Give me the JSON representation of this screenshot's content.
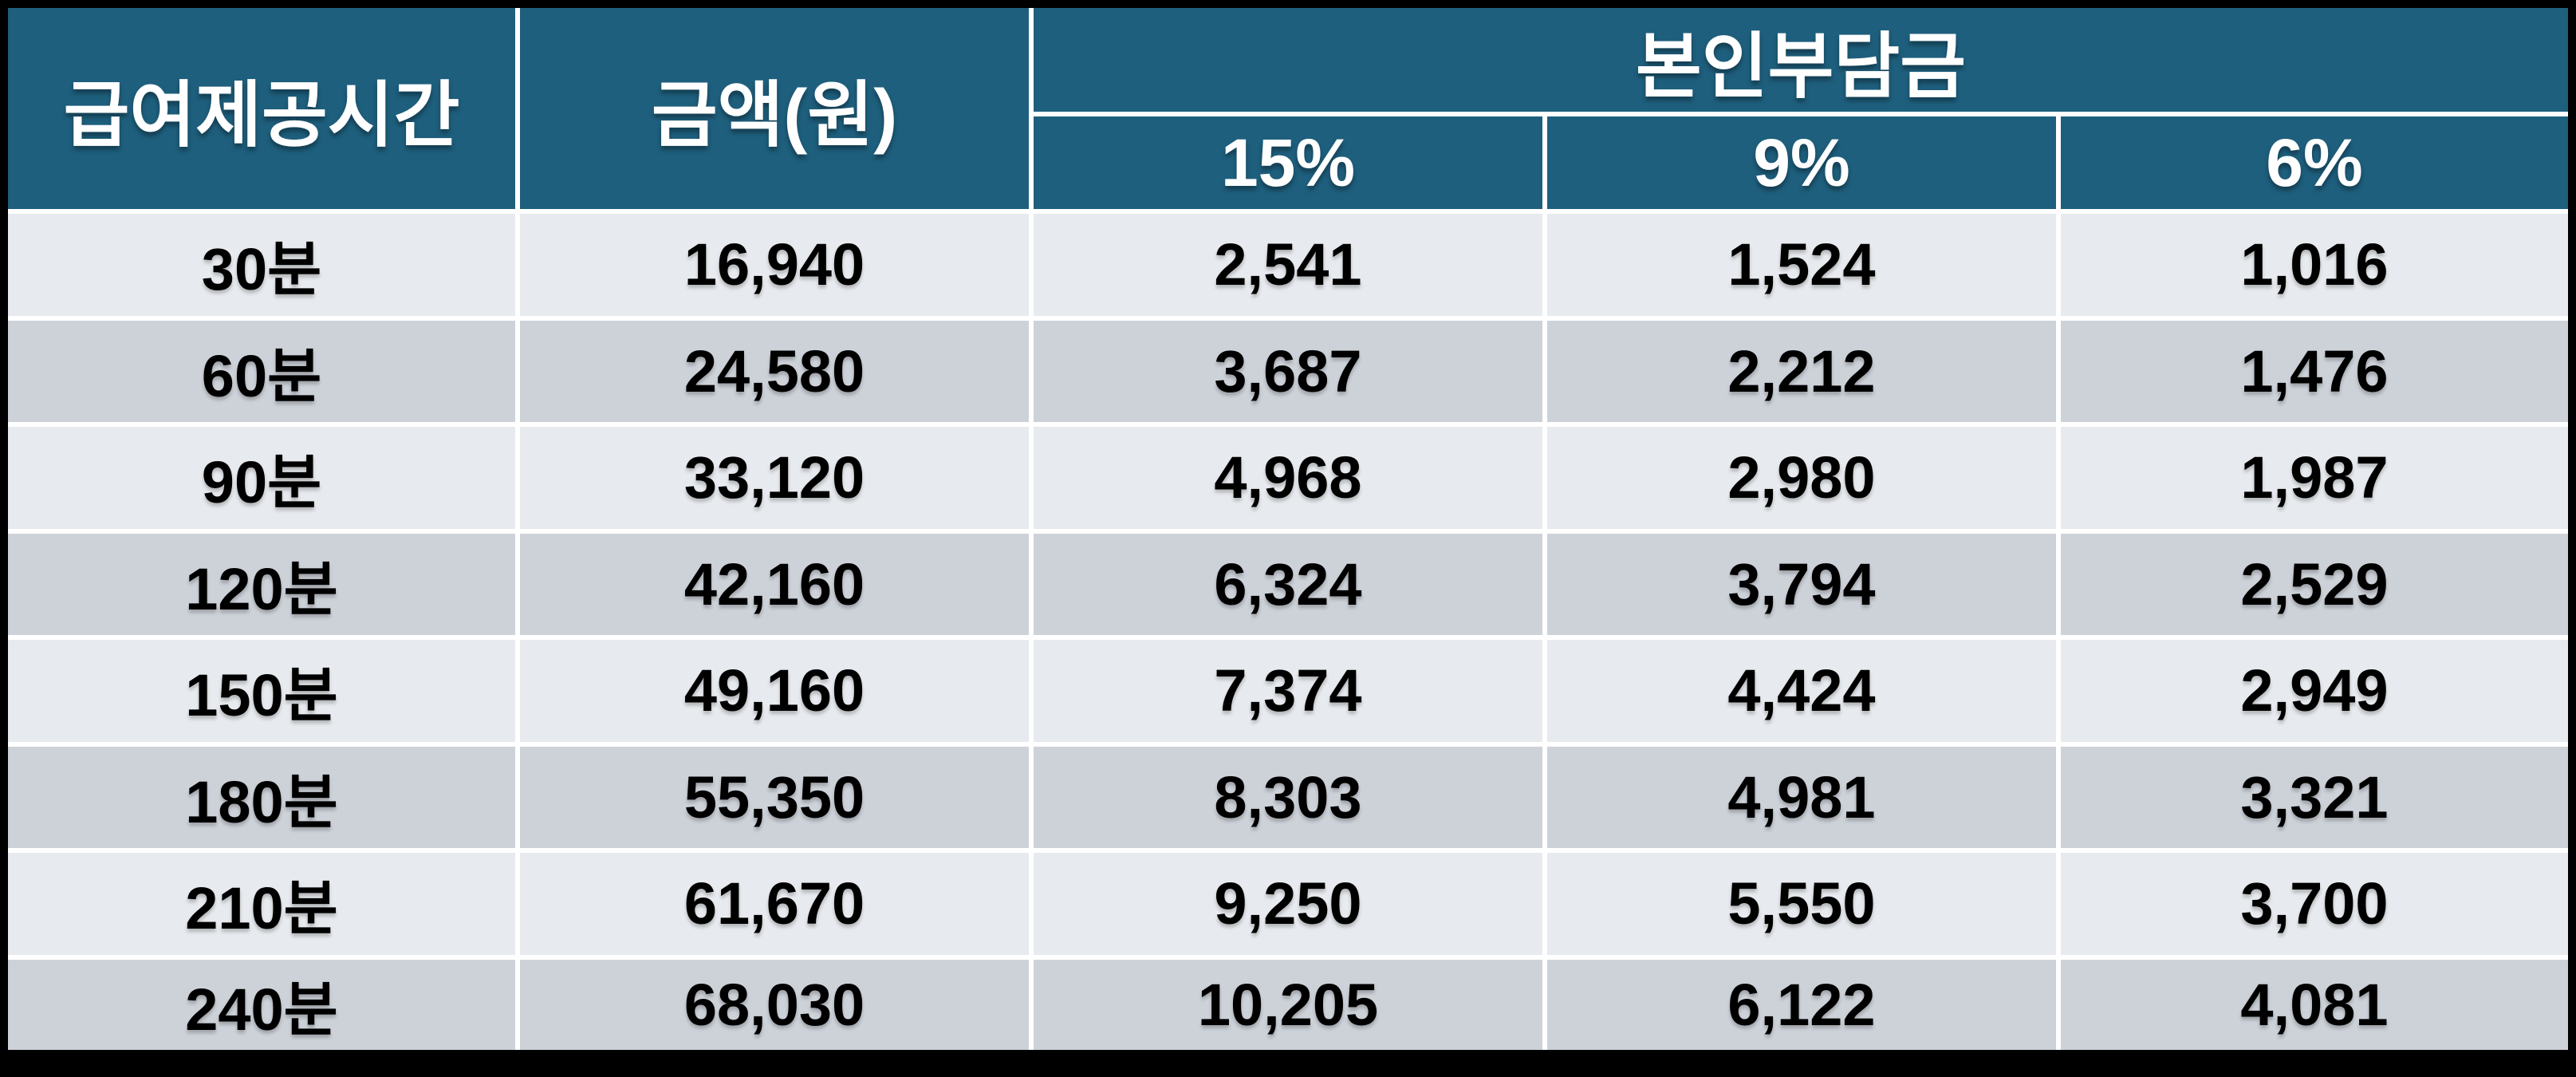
{
  "colors": {
    "header_bg": "#1E5F7D",
    "header_text": "#FFFFFF",
    "row_light": "#E7EAEE",
    "row_dark": "#CDD2D9",
    "grid_line": "#FFFFFF",
    "frame": "#000000",
    "cell_text": "#000000"
  },
  "table": {
    "header": {
      "time": "급여제공시간",
      "amount": "금액(원)",
      "copay_group": "본인부담금",
      "rates": [
        "15%",
        "9%",
        "6%"
      ]
    },
    "rows": [
      {
        "time": "30분",
        "amount": "16,940",
        "r15": "2,541",
        "r9": "1,524",
        "r6": "1,016"
      },
      {
        "time": "60분",
        "amount": "24,580",
        "r15": "3,687",
        "r9": "2,212",
        "r6": "1,476"
      },
      {
        "time": "90분",
        "amount": "33,120",
        "r15": "4,968",
        "r9": "2,980",
        "r6": "1,987"
      },
      {
        "time": "120분",
        "amount": "42,160",
        "r15": "6,324",
        "r9": "3,794",
        "r6": "2,529"
      },
      {
        "time": "150분",
        "amount": "49,160",
        "r15": "7,374",
        "r9": "4,424",
        "r6": "2,949"
      },
      {
        "time": "180분",
        "amount": "55,350",
        "r15": "8,303",
        "r9": "4,981",
        "r6": "3,321"
      },
      {
        "time": "210분",
        "amount": "61,670",
        "r15": "9,250",
        "r9": "5,550",
        "r6": "3,700"
      },
      {
        "time": "240분",
        "amount": "68,030",
        "r15": "10,205",
        "r9": "6,122",
        "r6": "4,081"
      }
    ]
  },
  "chart_data": {
    "type": "table",
    "title": "",
    "columns": [
      "급여제공시간",
      "금액(원)",
      "본인부담금 15%",
      "본인부담금 9%",
      "본인부담금 6%"
    ],
    "rows": [
      [
        "30분",
        16940,
        2541,
        1524,
        1016
      ],
      [
        "60분",
        24580,
        3687,
        2212,
        1476
      ],
      [
        "90분",
        33120,
        4968,
        2980,
        1987
      ],
      [
        "120분",
        42160,
        6324,
        3794,
        2529
      ],
      [
        "150분",
        49160,
        7374,
        4424,
        2949
      ],
      [
        "180분",
        55350,
        8303,
        4981,
        3321
      ],
      [
        "210분",
        61670,
        9250,
        5550,
        3700
      ],
      [
        "240분",
        68030,
        10205,
        6122,
        4081
      ]
    ],
    "layout": {
      "header_rows": 2,
      "merged_cells": [
        "급여제공시간 rowspan 2",
        "금액(원) rowspan 2",
        "본인부담금 colspan 3"
      ],
      "grid": "white gridlines on black frame, alternating light/dark gray body rows"
    }
  }
}
